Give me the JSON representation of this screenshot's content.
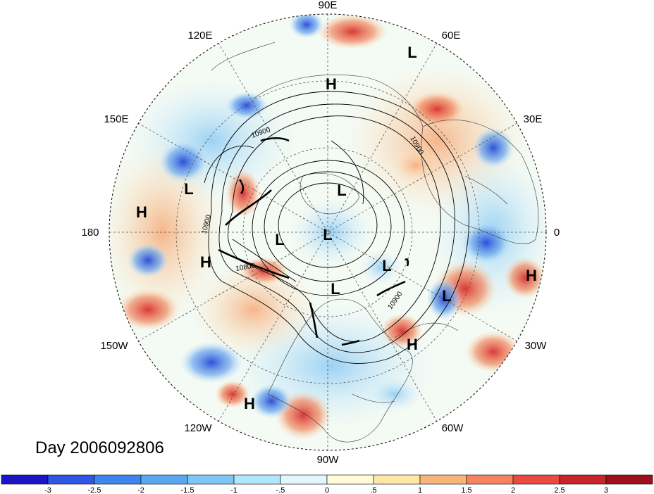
{
  "title": "Day 2006092806",
  "longitude_labels": [
    "90E",
    "60E",
    "30E",
    "0",
    "30W",
    "60W",
    "90W",
    "120W",
    "150W",
    "180",
    "150E",
    "120E"
  ],
  "pressure_centers": [
    {
      "type": "L",
      "lon": "60E"
    },
    {
      "type": "H",
      "lon": "90E"
    },
    {
      "type": "L",
      "lon": "165E"
    },
    {
      "type": "H",
      "lon": "170E"
    },
    {
      "type": "L",
      "lon": "pole"
    },
    {
      "type": "L",
      "lon": "pole"
    },
    {
      "type": "L",
      "lon": "pole"
    },
    {
      "type": "L",
      "lon": "10W"
    },
    {
      "type": "H",
      "lon": "170W"
    },
    {
      "type": "L",
      "lon": "90W"
    },
    {
      "type": "L",
      "lon": "30W"
    },
    {
      "type": "H",
      "lon": "50W"
    },
    {
      "type": "H",
      "lon": "20W"
    },
    {
      "type": "H",
      "lon": "115W"
    }
  ],
  "contour_labels": [
    "10900",
    "10900",
    "10900",
    "10800",
    "10900"
  ],
  "colorbar": {
    "labels": [
      "-3",
      "-2.5",
      "-2",
      "-1.5",
      "-1",
      "-.5",
      "0",
      ".5",
      "1",
      "1.5",
      "2",
      "2.5",
      "3"
    ],
    "colors": [
      "#1a16c8",
      "#2f57e6",
      "#3c86ee",
      "#5aa8f2",
      "#7ec6f6",
      "#b0e8fb",
      "#e2f7fd",
      "#fffbd6",
      "#fde6a6",
      "#f8b479",
      "#f4835e",
      "#ea4a40",
      "#c8242a",
      "#a0101c"
    ]
  },
  "colors": {
    "warm": "#e8553c",
    "cool": "#3a7fe0",
    "neutral": "#f6fbf2"
  }
}
